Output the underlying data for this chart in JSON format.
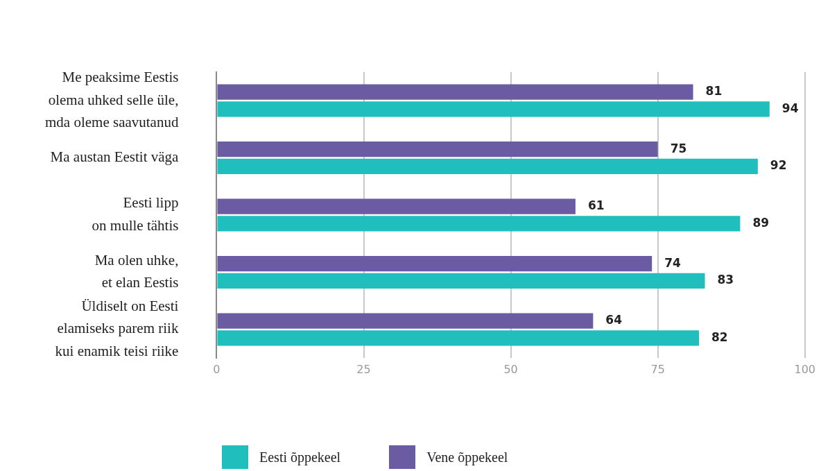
{
  "chart_data": {
    "type": "bar",
    "orientation": "horizontal",
    "categories": [
      "Me peaksime Eestis\nolema uhked selle üle,\nmda oleme saavutanud",
      "Ma austan Eestit väga",
      "Eesti lipp\non mulle tähtis",
      "Ma olen uhke,\net elan Eestis",
      "Üldiselt on Eesti\nelamiseks parem riik\nkui enamik teisi riike"
    ],
    "series": [
      {
        "name": "Eesti õppekeel",
        "color": "#20bfbe",
        "values": [
          94,
          92,
          89,
          83,
          82
        ]
      },
      {
        "name": "Vene õppekeel",
        "color": "#6b5ba3",
        "values": [
          81,
          75,
          61,
          74,
          64
        ]
      }
    ],
    "xlim": [
      0,
      100
    ],
    "xticks": [
      0,
      25,
      50,
      75,
      100
    ],
    "grid": "x",
    "legend": "bottom",
    "data_labels": true
  }
}
